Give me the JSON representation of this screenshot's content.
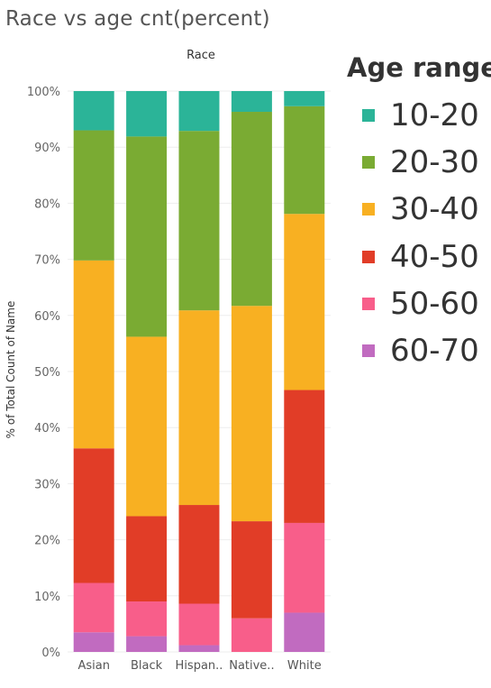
{
  "title": "Race vs age cnt(percent)",
  "legend": {
    "title": "Age range",
    "items": [
      {
        "label": "10-20",
        "color": "#2BB498"
      },
      {
        "label": "20-30",
        "color": "#7AAB33"
      },
      {
        "label": "30-40",
        "color": "#F8B022"
      },
      {
        "label": "40-50",
        "color": "#E13D27"
      },
      {
        "label": "50-60",
        "color": "#F85E8A"
      },
      {
        "label": "60-70",
        "color": "#C16BC0"
      }
    ]
  },
  "chart_data": {
    "type": "bar",
    "stacked": true,
    "title": "Race vs age cnt(percent)",
    "column_header": "Race",
    "ylabel": "% of Total Count of Name",
    "ylim": [
      0,
      100
    ],
    "yticks": [
      "0%",
      "10%",
      "20%",
      "30%",
      "40%",
      "50%",
      "60%",
      "70%",
      "80%",
      "90%",
      "100%"
    ],
    "categories": [
      "Asian",
      "Black",
      "Hispan..",
      "Native..",
      "White"
    ],
    "series": [
      {
        "name": "60-70",
        "color": "#C16BC0",
        "values": [
          3.5,
          2.8,
          1.2,
          0,
          7.0
        ]
      },
      {
        "name": "50-60",
        "color": "#F85E8A",
        "values": [
          8.8,
          6.2,
          7.4,
          6.0,
          16.0
        ]
      },
      {
        "name": "40-50",
        "color": "#E13D27",
        "values": [
          24.0,
          15.2,
          17.6,
          17.3,
          23.7
        ]
      },
      {
        "name": "30-40",
        "color": "#F8B022",
        "values": [
          33.5,
          32.0,
          34.7,
          38.4,
          31.4
        ]
      },
      {
        "name": "20-30",
        "color": "#7AAB33",
        "values": [
          23.2,
          35.7,
          32.0,
          34.6,
          19.2
        ]
      },
      {
        "name": "10-20",
        "color": "#2BB498",
        "values": [
          7.0,
          8.1,
          7.1,
          3.7,
          2.7
        ]
      }
    ],
    "gridlines": true,
    "legend_position": "right"
  }
}
